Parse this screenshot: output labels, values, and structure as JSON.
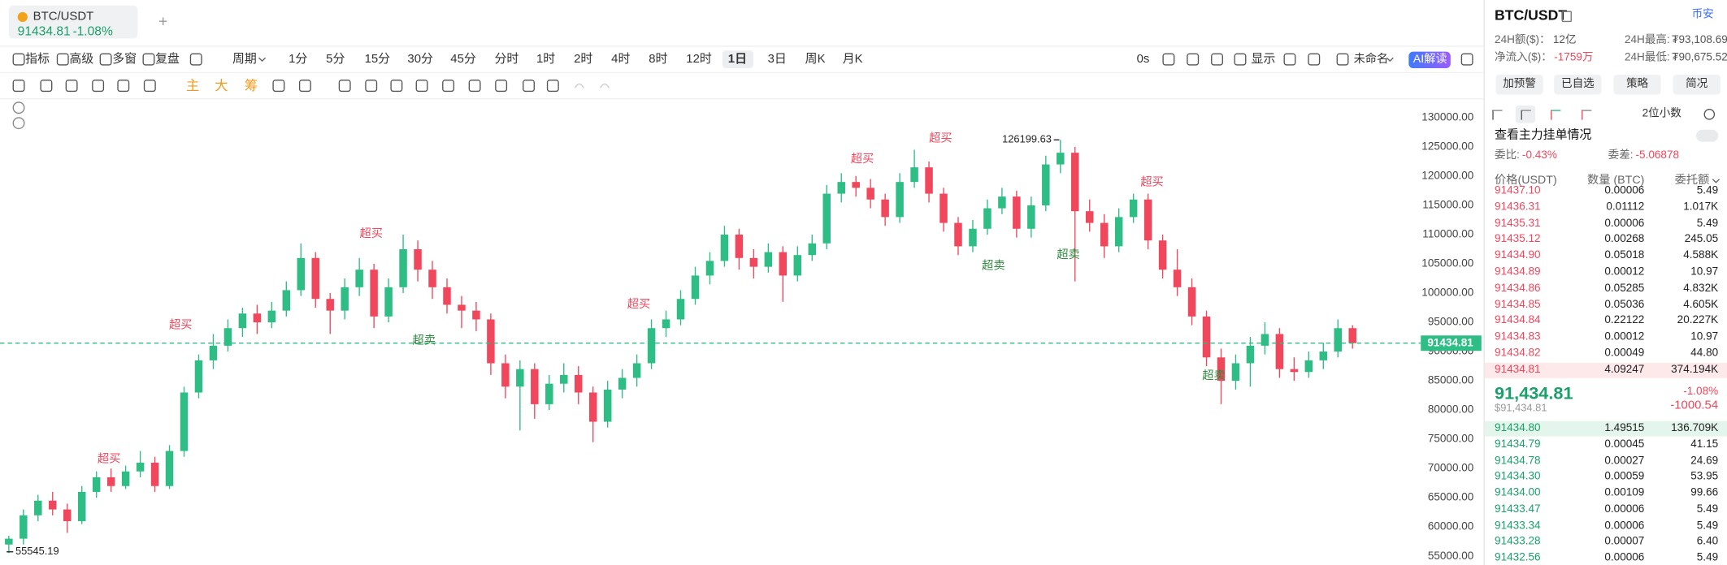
{
  "tab": {
    "symbol": "BTC/USDT",
    "price": "91434.81",
    "change": "-1.08%",
    "add": "+"
  },
  "toolbar": {
    "left": [
      "指标",
      "高级",
      "多窗",
      "复盘"
    ],
    "period": "周期",
    "periods": [
      "1分",
      "5分",
      "15分",
      "30分",
      "45分",
      "分时",
      "1时",
      "2时",
      "4时",
      "8时",
      "12时",
      "1日",
      "3日",
      "周K",
      "月K"
    ],
    "active_period": 11,
    "delay": "0s",
    "display": "显示",
    "layout_name": "未命名",
    "ai": "AI解读"
  },
  "drawing_toolbar": {
    "labels": [
      "主",
      "大",
      "筹"
    ]
  },
  "chart_data": {
    "type": "candlestick",
    "up_color": "#2dbd85",
    "down_color": "#f0475c",
    "ylim": [
      53500,
      133200
    ],
    "yticks": [
      {
        "value": 55000,
        "label": "55000.00"
      },
      {
        "value": 60000,
        "label": "60000.00"
      },
      {
        "value": 65000,
        "label": "65000.00"
      },
      {
        "value": 70000,
        "label": "70000.00"
      },
      {
        "value": 75000,
        "label": "75000.00"
      },
      {
        "value": 80000,
        "label": "80000.00"
      },
      {
        "value": 85000,
        "label": "85000.00"
      },
      {
        "value": 90000,
        "label": "90000.00"
      },
      {
        "value": 95000,
        "label": "95000.00"
      },
      {
        "value": 100000,
        "label": "100000.00"
      },
      {
        "value": 105000,
        "label": "105000.00"
      },
      {
        "value": 110000,
        "label": "110000.00"
      },
      {
        "value": 115000,
        "label": "115000.00"
      },
      {
        "value": 120000,
        "label": "120000.00"
      },
      {
        "value": 125000,
        "label": "125000.00"
      },
      {
        "value": 130000,
        "label": "130000.00"
      }
    ],
    "candles": [
      [
        57000,
        58500,
        55545.19,
        58000
      ],
      [
        58000,
        63000,
        57000,
        62000
      ],
      [
        62000,
        65500,
        61000,
        64500
      ],
      [
        64500,
        66000,
        62000,
        63000
      ],
      [
        63000,
        64000,
        59000,
        61000
      ],
      [
        61000,
        67000,
        60500,
        66000
      ],
      [
        66000,
        69500,
        65000,
        68500
      ],
      [
        68500,
        70000,
        66000,
        67000
      ],
      [
        67000,
        70500,
        66500,
        69500
      ],
      [
        69500,
        73000,
        68500,
        71000
      ],
      [
        71000,
        72000,
        66000,
        67000
      ],
      [
        67000,
        74000,
        66500,
        73000
      ],
      [
        73000,
        84000,
        72000,
        83000
      ],
      [
        83000,
        89500,
        82000,
        88500
      ],
      [
        88500,
        93000,
        87000,
        91000
      ],
      [
        91000,
        95500,
        90000,
        94000
      ],
      [
        94000,
        97500,
        92500,
        96500
      ],
      [
        96500,
        98000,
        93000,
        95000
      ],
      [
        95000,
        98500,
        94000,
        97000
      ],
      [
        97000,
        102000,
        96000,
        100500
      ],
      [
        100500,
        108500,
        99500,
        106000
      ],
      [
        106000,
        107000,
        97500,
        99000
      ],
      [
        99000,
        100000,
        93000,
        97000
      ],
      [
        97000,
        102500,
        95500,
        101000
      ],
      [
        101000,
        106000,
        99500,
        104000
      ],
      [
        104000,
        105000,
        94000,
        96000
      ],
      [
        96000,
        102500,
        95000,
        101000
      ],
      [
        101000,
        110000,
        100000,
        107500
      ],
      [
        107500,
        109000,
        102000,
        104000
      ],
      [
        104000,
        105500,
        99000,
        101000
      ],
      [
        101000,
        102500,
        96500,
        98000
      ],
      [
        98000,
        99500,
        94000,
        97000
      ],
      [
        97000,
        98500,
        93500,
        95500
      ],
      [
        95500,
        96500,
        86000,
        88000
      ],
      [
        88000,
        89500,
        82000,
        84000
      ],
      [
        84000,
        88500,
        76500,
        87000
      ],
      [
        87000,
        88000,
        78500,
        81000
      ],
      [
        81000,
        86000,
        80000,
        84500
      ],
      [
        84500,
        88000,
        83000,
        86000
      ],
      [
        86000,
        87500,
        81000,
        83000
      ],
      [
        83000,
        84000,
        74500,
        78000
      ],
      [
        78000,
        85000,
        77000,
        83500
      ],
      [
        83500,
        87000,
        82000,
        85500
      ],
      [
        85500,
        89500,
        84000,
        88000
      ],
      [
        88000,
        95500,
        87000,
        94000
      ],
      [
        94000,
        97000,
        92500,
        95500
      ],
      [
        95500,
        100500,
        94500,
        99000
      ],
      [
        99000,
        104500,
        98000,
        103000
      ],
      [
        103000,
        107000,
        101500,
        105500
      ],
      [
        105500,
        111500,
        104500,
        110000
      ],
      [
        110000,
        111000,
        104000,
        106000
      ],
      [
        106000,
        107500,
        102500,
        104500
      ],
      [
        104500,
        108500,
        103500,
        107000
      ],
      [
        107000,
        108000,
        98500,
        103000
      ],
      [
        103000,
        108000,
        102000,
        106500
      ],
      [
        106500,
        110000,
        105500,
        108500
      ],
      [
        108500,
        118500,
        107500,
        117000
      ],
      [
        117000,
        120500,
        115500,
        119000
      ],
      [
        119000,
        120000,
        116500,
        118000
      ],
      [
        118000,
        119500,
        114500,
        116000
      ],
      [
        116000,
        117000,
        111500,
        113000
      ],
      [
        113000,
        120500,
        112000,
        119000
      ],
      [
        119000,
        124500,
        118000,
        121500
      ],
      [
        121500,
        122500,
        115500,
        117000
      ],
      [
        117000,
        118000,
        110500,
        112000
      ],
      [
        112000,
        113000,
        106500,
        108000
      ],
      [
        108000,
        112500,
        107000,
        111000
      ],
      [
        111000,
        116000,
        110000,
        114500
      ],
      [
        114500,
        118000,
        113500,
        116500
      ],
      [
        116500,
        117500,
        109500,
        111000
      ],
      [
        111000,
        116500,
        109500,
        115000
      ],
      [
        115000,
        123500,
        114000,
        122000
      ],
      [
        122000,
        126199.63,
        120500,
        124000
      ],
      [
        124000,
        125000,
        102000,
        114000
      ],
      [
        114000,
        116000,
        110500,
        112000
      ],
      [
        112000,
        113500,
        106000,
        108000
      ],
      [
        108000,
        114500,
        107000,
        113000
      ],
      [
        113000,
        117000,
        112000,
        116000
      ],
      [
        116000,
        117000,
        107500,
        109000
      ],
      [
        109000,
        110000,
        102500,
        104000
      ],
      [
        104000,
        107500,
        99500,
        101000
      ],
      [
        101000,
        102500,
        94500,
        96000
      ],
      [
        96000,
        97000,
        87500,
        89000
      ],
      [
        89000,
        90500,
        81000,
        85000
      ],
      [
        85000,
        89500,
        83500,
        88000
      ],
      [
        88000,
        92500,
        84000,
        91000
      ],
      [
        91000,
        95000,
        89500,
        93000
      ],
      [
        93000,
        94000,
        85500,
        87000
      ],
      [
        87000,
        89000,
        85000,
        86500
      ],
      [
        86500,
        90000,
        85500,
        88500
      ],
      [
        88500,
        91500,
        87000,
        90000
      ],
      [
        90000,
        95500,
        89000,
        94000
      ],
      [
        94000,
        94500,
        90500,
        91434.81
      ]
    ],
    "annotations": [
      {
        "text": "超买",
        "color": "#f0475c"
      },
      {
        "text": "超买",
        "color": "#f0475c"
      },
      {
        "text": "超买",
        "color": "#f0475c"
      },
      {
        "text": "超卖",
        "color": "#2e8b3e"
      },
      {
        "text": "超买",
        "color": "#f0475c"
      },
      {
        "text": "超买",
        "color": "#f0475c"
      },
      {
        "text": "超买",
        "color": "#f0475c"
      },
      {
        "text": "超卖",
        "color": "#2e8b3e"
      },
      {
        "text": "超卖",
        "color": "#2e8b3e"
      },
      {
        "text": "超买",
        "color": "#f0475c"
      },
      {
        "text": "超卖",
        "color": "#2e8b3e"
      }
    ]
  },
  "panel": {
    "symbol": "BTC/USDT",
    "exchange": "币安",
    "volume_label": "24H额($)：",
    "volume": "12亿",
    "high_label": "24H最高:",
    "high": "₮93,108.69",
    "inflow_label": "净流入($)：",
    "inflow": "-1759万",
    "low_label": "24H最低:",
    "low": "₮90,675.52",
    "buttons": [
      "加预警",
      "已自选",
      "策略",
      "简况"
    ],
    "decimals": "2位小数",
    "main_orders": "查看主力挂单情况",
    "ratio_label": "委比:",
    "ratio": "-0.43%",
    "diff_label": "委差:",
    "diff": "-5.06878",
    "headers": [
      "价格(USDT)",
      "数量 (BTC)",
      "委托额"
    ],
    "asks": [
      [
        "91437.10",
        "0.00006",
        "5.49"
      ],
      [
        "91436.31",
        "0.01112",
        "1.017K"
      ],
      [
        "91435.31",
        "0.00006",
        "5.49"
      ],
      [
        "91435.12",
        "0.00268",
        "245.05"
      ],
      [
        "91434.90",
        "0.05018",
        "4.588K"
      ],
      [
        "91434.89",
        "0.00012",
        "10.97"
      ],
      [
        "91434.86",
        "0.05285",
        "4.832K"
      ],
      [
        "91434.85",
        "0.05036",
        "4.605K"
      ],
      [
        "91434.84",
        "0.22122",
        "20.227K"
      ],
      [
        "91434.83",
        "0.00012",
        "10.97"
      ],
      [
        "91434.82",
        "0.00049",
        "44.80"
      ],
      [
        "91434.81",
        "4.09247",
        "374.194K"
      ]
    ],
    "last": {
      "price": "91,434.81",
      "usd": "$91,434.81",
      "change": "-1.08%",
      "change_abs": "-1000.54"
    },
    "bids": [
      [
        "91434.80",
        "1.49515",
        "136.709K"
      ],
      [
        "91434.79",
        "0.00045",
        "41.15"
      ],
      [
        "91434.78",
        "0.00027",
        "24.69"
      ],
      [
        "91434.30",
        "0.00059",
        "53.95"
      ],
      [
        "91434.00",
        "0.00109",
        "99.66"
      ],
      [
        "91433.47",
        "0.00006",
        "5.49"
      ],
      [
        "91433.34",
        "0.00006",
        "5.49"
      ],
      [
        "91433.28",
        "0.00007",
        "6.40"
      ],
      [
        "91432.56",
        "0.00006",
        "5.49"
      ]
    ]
  }
}
